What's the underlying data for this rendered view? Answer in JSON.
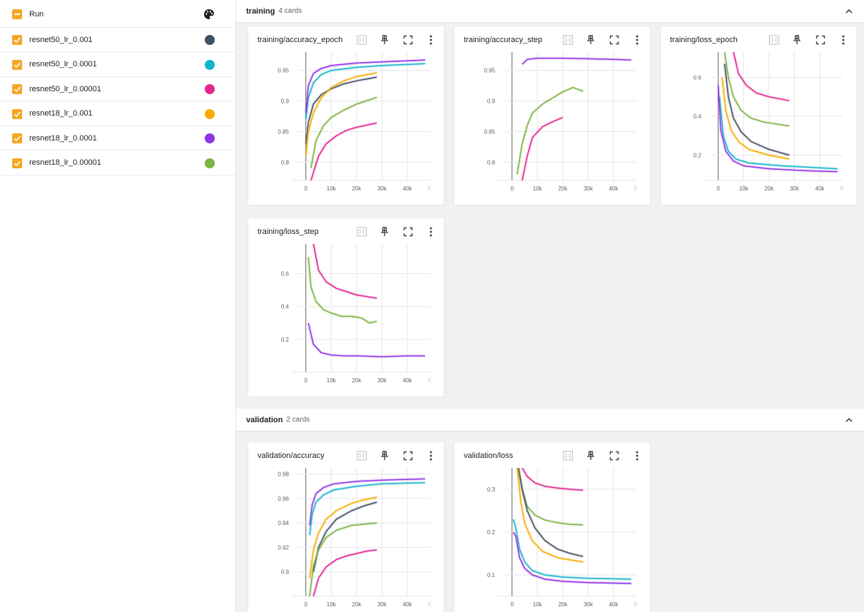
{
  "sidebar": {
    "header_label": "Run",
    "runs": [
      {
        "label": "resnet50_lr_0.001",
        "color": "#425066"
      },
      {
        "label": "resnet50_lr_0.0001",
        "color": "#12b5cb"
      },
      {
        "label": "resnet50_lr_0.00001",
        "color": "#e52592"
      },
      {
        "label": "resnet18_lr_0.001",
        "color": "#f9ab00"
      },
      {
        "label": "resnet18_lr_0.0001",
        "color": "#9334e6"
      },
      {
        "label": "resnet18_lr_0.00001",
        "color": "#7cb342"
      }
    ]
  },
  "sections": [
    {
      "title": "training",
      "count": "4 cards"
    },
    {
      "title": "validation",
      "count": "2 cards"
    }
  ],
  "chart_data": [
    {
      "title": "training/accuracy_epoch",
      "type": "line",
      "xticks": [
        "0",
        "10k",
        "20k",
        "30k",
        "40k",
        "5"
      ],
      "yticks": [
        "0.95",
        "0.9",
        "0.85",
        "0.8"
      ],
      "ylim": [
        0.77,
        0.98
      ],
      "series": [
        {
          "color": "#425066",
          "x": [
            0,
            1000,
            3000,
            6000,
            10000,
            15000,
            20000,
            28000
          ],
          "y": [
            0.83,
            0.865,
            0.895,
            0.91,
            0.92,
            0.928,
            0.933,
            0.939
          ]
        },
        {
          "color": "#12b5cb",
          "x": [
            0,
            1000,
            3000,
            6000,
            10000,
            20000,
            30000,
            47000
          ],
          "y": [
            0.87,
            0.905,
            0.93,
            0.943,
            0.95,
            0.955,
            0.958,
            0.961
          ]
        },
        {
          "color": "#e52592",
          "x": [
            2000,
            5000,
            8000,
            12000,
            16000,
            20000,
            28000
          ],
          "y": [
            0.77,
            0.81,
            0.83,
            0.843,
            0.852,
            0.857,
            0.864
          ]
        },
        {
          "color": "#f9ab00",
          "x": [
            0,
            1000,
            3000,
            6000,
            10000,
            15000,
            20000,
            28000
          ],
          "y": [
            0.81,
            0.85,
            0.88,
            0.905,
            0.922,
            0.933,
            0.94,
            0.946
          ]
        },
        {
          "color": "#9334e6",
          "x": [
            0,
            1000,
            3000,
            6000,
            10000,
            20000,
            30000,
            47000
          ],
          "y": [
            0.88,
            0.925,
            0.945,
            0.953,
            0.958,
            0.962,
            0.964,
            0.967
          ]
        },
        {
          "color": "#7cb342",
          "x": [
            2000,
            4000,
            7000,
            10000,
            15000,
            20000,
            28000
          ],
          "y": [
            0.79,
            0.835,
            0.86,
            0.873,
            0.885,
            0.895,
            0.906
          ]
        }
      ]
    },
    {
      "title": "training/accuracy_step",
      "type": "line",
      "xticks": [
        "0",
        "10k",
        "20k",
        "30k",
        "40k",
        "5"
      ],
      "yticks": [
        "0.95",
        "0.9",
        "0.85",
        "0.8"
      ],
      "ylim": [
        0.77,
        0.98
      ],
      "series": [
        {
          "color": "#9334e6",
          "x": [
            4000,
            6000,
            10000,
            20000,
            30000,
            40000,
            47000
          ],
          "y": [
            0.96,
            0.968,
            0.97,
            0.97,
            0.969,
            0.968,
            0.967
          ]
        },
        {
          "color": "#7cb342",
          "x": [
            2000,
            4000,
            6000,
            8000,
            12000,
            16000,
            20000,
            24000,
            28000
          ],
          "y": [
            0.78,
            0.83,
            0.86,
            0.88,
            0.895,
            0.905,
            0.915,
            0.922,
            0.916
          ]
        },
        {
          "color": "#e52592",
          "x": [
            4000,
            6000,
            8000,
            12000,
            16000,
            20000
          ],
          "y": [
            0.77,
            0.81,
            0.84,
            0.858,
            0.866,
            0.873
          ]
        }
      ]
    },
    {
      "title": "training/loss_epoch",
      "type": "line",
      "xticks": [
        "0",
        "10k",
        "20k",
        "30k",
        "40k",
        "5"
      ],
      "yticks": [
        "0.6",
        "0.4",
        "0.2"
      ],
      "ylim": [
        0.07,
        0.73
      ],
      "series": [
        {
          "color": "#e52592",
          "x": [
            6000,
            8000,
            11000,
            15000,
            20000,
            28000
          ],
          "y": [
            0.73,
            0.62,
            0.56,
            0.52,
            0.5,
            0.48
          ]
        },
        {
          "color": "#7cb342",
          "x": [
            2500,
            4000,
            6000,
            9000,
            13000,
            18000,
            28000
          ],
          "y": [
            0.73,
            0.6,
            0.5,
            0.43,
            0.39,
            0.37,
            0.35
          ]
        },
        {
          "color": "#425066",
          "x": [
            2500,
            4000,
            6000,
            9000,
            13000,
            20000,
            28000
          ],
          "y": [
            0.67,
            0.5,
            0.39,
            0.32,
            0.27,
            0.23,
            0.2
          ]
        },
        {
          "color": "#f9ab00",
          "x": [
            1500,
            3000,
            5000,
            8000,
            12000,
            20000,
            28000
          ],
          "y": [
            0.6,
            0.43,
            0.33,
            0.27,
            0.23,
            0.2,
            0.18
          ]
        },
        {
          "color": "#12b5cb",
          "x": [
            500,
            2000,
            4000,
            7000,
            12000,
            25000,
            47000
          ],
          "y": [
            0.5,
            0.3,
            0.22,
            0.18,
            0.16,
            0.145,
            0.13
          ]
        },
        {
          "color": "#9334e6",
          "x": [
            0,
            1000,
            3000,
            6000,
            10000,
            20000,
            35000,
            47000
          ],
          "y": [
            0.56,
            0.33,
            0.22,
            0.17,
            0.145,
            0.13,
            0.12,
            0.115
          ]
        }
      ]
    },
    {
      "title": "training/loss_step",
      "type": "line",
      "xticks": [
        "0",
        "10k",
        "20k",
        "30k",
        "40k",
        "5"
      ],
      "yticks": [
        "0.6",
        "0.4",
        "0.2"
      ],
      "ylim": [
        0.0,
        0.78
      ],
      "series": [
        {
          "color": "#e52592",
          "x": [
            3000,
            5000,
            8000,
            12000,
            16000,
            20000,
            24000,
            28000
          ],
          "y": [
            0.78,
            0.62,
            0.55,
            0.51,
            0.49,
            0.47,
            0.46,
            0.45
          ]
        },
        {
          "color": "#7cb342",
          "x": [
            1000,
            2000,
            4000,
            7000,
            10000,
            14000,
            18000,
            22000,
            25000,
            28000
          ],
          "y": [
            0.7,
            0.52,
            0.43,
            0.38,
            0.36,
            0.34,
            0.34,
            0.33,
            0.3,
            0.31
          ]
        },
        {
          "color": "#9334e6",
          "x": [
            1000,
            3000,
            6000,
            10000,
            15000,
            20000,
            30000,
            40000,
            47000
          ],
          "y": [
            0.3,
            0.17,
            0.12,
            0.105,
            0.1,
            0.1,
            0.095,
            0.1,
            0.1
          ]
        }
      ]
    },
    {
      "title": "validation/accuracy",
      "type": "line",
      "xticks": [
        "0",
        "10k",
        "20k",
        "30k",
        "40k",
        "5"
      ],
      "yticks": [
        "0.98",
        "0.96",
        "0.94",
        "0.92",
        "0.9"
      ],
      "ylim": [
        0.88,
        0.985
      ],
      "series": [
        {
          "color": "#9334e6",
          "x": [
            1500,
            2500,
            4000,
            7000,
            11000,
            20000,
            30000,
            47000
          ],
          "y": [
            0.938,
            0.955,
            0.964,
            0.969,
            0.972,
            0.974,
            0.975,
            0.976
          ]
        },
        {
          "color": "#12b5cb",
          "x": [
            1500,
            2500,
            4000,
            7000,
            11000,
            20000,
            30000,
            47000
          ],
          "y": [
            0.93,
            0.947,
            0.957,
            0.963,
            0.967,
            0.97,
            0.972,
            0.973
          ]
        },
        {
          "color": "#f9ab00",
          "x": [
            1500,
            3000,
            5000,
            8000,
            12000,
            18000,
            23000,
            28000
          ],
          "y": [
            0.895,
            0.918,
            0.932,
            0.943,
            0.95,
            0.956,
            0.959,
            0.961
          ]
        },
        {
          "color": "#425066",
          "x": [
            3000,
            5000,
            8000,
            12000,
            18000,
            23000,
            28000
          ],
          "y": [
            0.9,
            0.92,
            0.933,
            0.943,
            0.95,
            0.954,
            0.957
          ]
        },
        {
          "color": "#7cb342",
          "x": [
            1500,
            3000,
            5000,
            8000,
            12000,
            18000,
            23000,
            28000
          ],
          "y": [
            0.88,
            0.905,
            0.918,
            0.928,
            0.934,
            0.938,
            0.939,
            0.94
          ]
        },
        {
          "color": "#e52592",
          "x": [
            3000,
            5000,
            8000,
            12000,
            16000,
            20000,
            24000,
            28000
          ],
          "y": [
            0.88,
            0.895,
            0.904,
            0.91,
            0.913,
            0.915,
            0.917,
            0.918
          ]
        }
      ]
    },
    {
      "title": "validation/loss",
      "type": "line",
      "xticks": [
        "0",
        "10k",
        "20k",
        "30k",
        "40k",
        "5"
      ],
      "yticks": [
        "0.3",
        "0.2",
        "0.1"
      ],
      "ylim": [
        0.05,
        0.35
      ],
      "series": [
        {
          "color": "#e52592",
          "x": [
            4000,
            6000,
            9000,
            13000,
            18000,
            23000,
            28000
          ],
          "y": [
            0.35,
            0.33,
            0.315,
            0.307,
            0.303,
            0.3,
            0.298
          ]
        },
        {
          "color": "#7cb342",
          "x": [
            2500,
            4000,
            6000,
            9000,
            13000,
            18000,
            23000,
            28000
          ],
          "y": [
            0.35,
            0.3,
            0.26,
            0.24,
            0.228,
            0.222,
            0.218,
            0.217
          ]
        },
        {
          "color": "#425066",
          "x": [
            2500,
            4000,
            6000,
            9000,
            13000,
            18000,
            23000,
            28000
          ],
          "y": [
            0.35,
            0.3,
            0.25,
            0.21,
            0.18,
            0.16,
            0.15,
            0.143
          ]
        },
        {
          "color": "#f9ab00",
          "x": [
            2000,
            3500,
            5000,
            8000,
            12000,
            18000,
            23000,
            28000
          ],
          "y": [
            0.35,
            0.27,
            0.22,
            0.18,
            0.155,
            0.14,
            0.135,
            0.13
          ]
        },
        {
          "color": "#12b5cb",
          "x": [
            500,
            1500,
            3000,
            5000,
            8000,
            13000,
            20000,
            30000,
            47000
          ],
          "y": [
            0.23,
            0.21,
            0.16,
            0.13,
            0.11,
            0.1,
            0.095,
            0.092,
            0.09
          ]
        },
        {
          "color": "#9334e6",
          "x": [
            500,
            1500,
            3000,
            5000,
            8000,
            13000,
            20000,
            30000,
            47000
          ],
          "y": [
            0.2,
            0.19,
            0.14,
            0.115,
            0.1,
            0.09,
            0.085,
            0.082,
            0.08
          ]
        }
      ]
    }
  ]
}
